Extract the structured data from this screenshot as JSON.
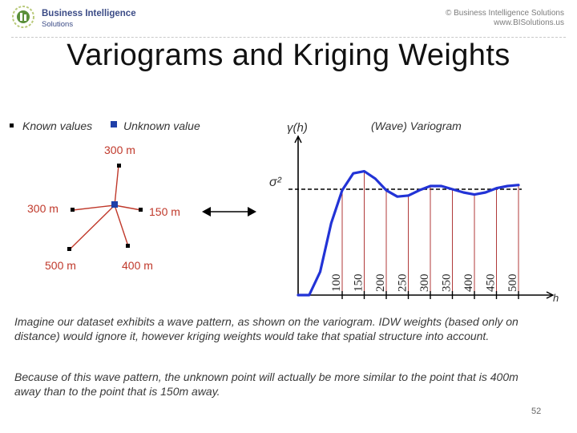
{
  "header": {
    "logo_name": "Business Intelligence",
    "logo_sub": "Solutions",
    "copyright": "© Business Intelligence Solutions",
    "website": "www.BISolutions.us"
  },
  "title": "Variograms and Kriging Weights",
  "legend": {
    "known_label": "Known values",
    "unknown_label": "Unknown value",
    "known_color": "#000000",
    "unknown_color": "#1f3fa8"
  },
  "points": [
    {
      "name": "point-north",
      "label": "300 m"
    },
    {
      "name": "point-west",
      "label": "300 m"
    },
    {
      "name": "point-east",
      "label": "150 m"
    },
    {
      "name": "point-southwest",
      "label": "500 m"
    },
    {
      "name": "point-south",
      "label": "400 m"
    }
  ],
  "arrow_icon": "double-arrow-icon",
  "colors": {
    "distance_label": "#c0392b",
    "spoke_line": "#c0392b",
    "curve": "#2233d6",
    "lag_lines": "#b03a3a"
  },
  "chart_data": {
    "type": "line",
    "title": "(Wave) Variogram",
    "ylabel": "γ(h)",
    "xlabel": "h",
    "sill_label": "σ²",
    "grid": false,
    "xlim": [
      0,
      560
    ],
    "ylim": [
      0,
      1.5
    ],
    "sill": 1.0,
    "x_ticks": [
      "100",
      "150",
      "200",
      "250",
      "300",
      "350",
      "400",
      "450",
      "500"
    ],
    "x": [
      0,
      25,
      50,
      75,
      100,
      125,
      150,
      175,
      200,
      225,
      250,
      275,
      300,
      325,
      350,
      375,
      400,
      425,
      450,
      475,
      500
    ],
    "series": [
      {
        "values": [
          0.0,
          0.0,
          0.22,
          0.68,
          0.99,
          1.15,
          1.17,
          1.1,
          0.99,
          0.93,
          0.94,
          0.99,
          1.03,
          1.03,
          1.0,
          0.97,
          0.95,
          0.97,
          1.01,
          1.03,
          1.04
        ]
      }
    ]
  },
  "paragraphs": [
    "Imagine our dataset exhibits a wave pattern, as shown on the variogram. IDW weights (based only on distance) would ignore it, however kriging weights would take that spatial structure into account.",
    "Because of this wave pattern, the unknown point will actually be more similar to the point that is 400m away than to the point that is 150m away."
  ],
  "slide_number": "52"
}
